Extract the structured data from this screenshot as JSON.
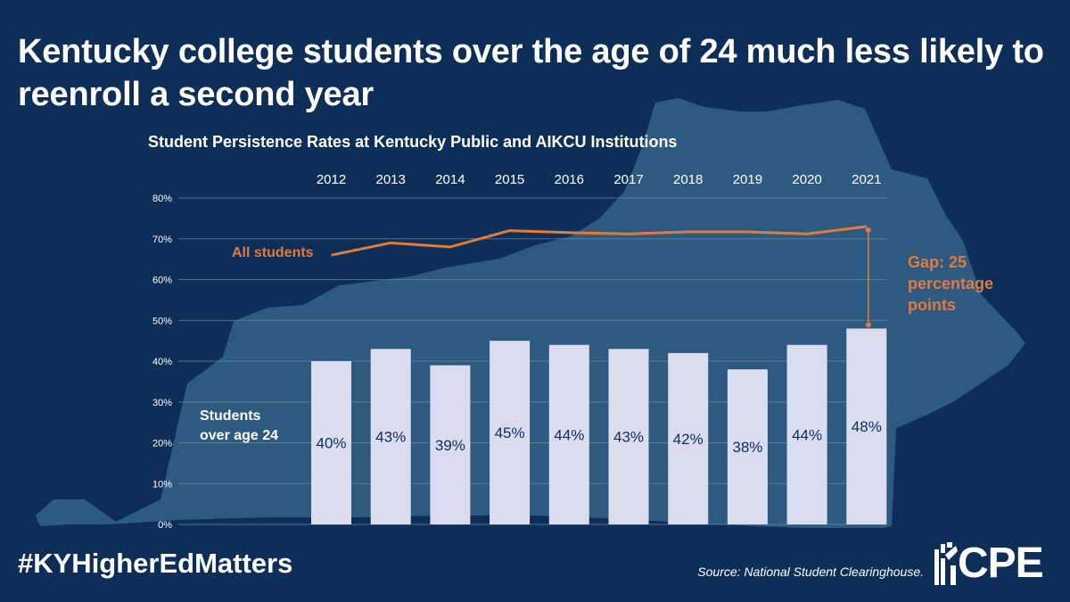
{
  "headline": "Kentucky college students over the age of 24 much less likely to reenroll a second year",
  "hashtag": "#KYHigherEdMatters",
  "source": "Source: National Student Clearinghouse.",
  "logo": {
    "text": "CPE"
  },
  "colors": {
    "background": "#0d2f57",
    "map": "#2e5a80",
    "bars": "#dcdcf0",
    "line": "#e07b3e",
    "bar_label": "#0d2f57",
    "gridline": "#6c89a8"
  },
  "chart_data": {
    "type": "bar",
    "title": "Student Persistence Rates at Kentucky Public and AIKCU Institutions",
    "categories": [
      "2012",
      "2013",
      "2014",
      "2015",
      "2016",
      "2017",
      "2018",
      "2019",
      "2020",
      "2021"
    ],
    "ylim": [
      0,
      80
    ],
    "yticks": [
      "0%",
      "10%",
      "20%",
      "30%",
      "40%",
      "50%",
      "60%",
      "70%",
      "80%"
    ],
    "grid": true,
    "series": [
      {
        "name": "Students over age 24",
        "kind": "bar",
        "values": [
          40,
          43,
          39,
          45,
          44,
          43,
          42,
          38,
          44,
          48
        ],
        "labels": [
          "40%",
          "43%",
          "39%",
          "45%",
          "44%",
          "43%",
          "42%",
          "38%",
          "44%",
          "48%"
        ]
      },
      {
        "name": "All students",
        "kind": "line",
        "values": [
          66,
          69,
          68,
          72,
          71.5,
          71.2,
          71.7,
          71.7,
          71.2,
          73
        ]
      }
    ],
    "series_labels": {
      "bars": "Students over age 24",
      "line": "All students"
    },
    "annotation": "Gap: 25 percentage points"
  }
}
